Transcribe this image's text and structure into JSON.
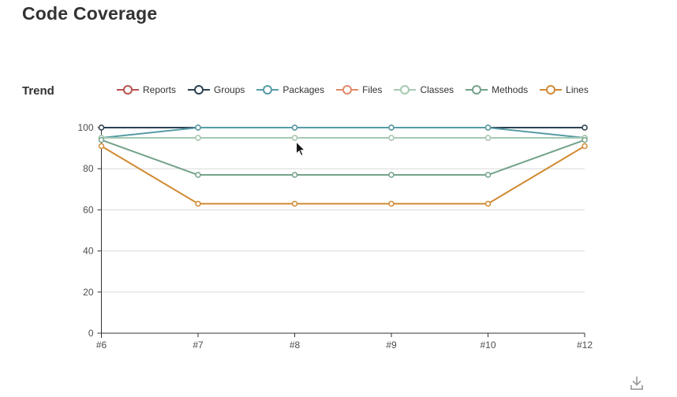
{
  "page": {
    "title": "Code Coverage"
  },
  "trend": {
    "heading": "Trend"
  },
  "chart_data": {
    "type": "line",
    "title": "Trend",
    "x": [
      "#6",
      "#7",
      "#8",
      "#9",
      "#10",
      "#12"
    ],
    "ylim": [
      0,
      100
    ],
    "yticks": [
      0,
      20,
      40,
      60,
      80,
      100
    ],
    "grid": true,
    "legend_position": "top",
    "marker": "empty-circle",
    "series": [
      {
        "name": "Reports",
        "color": "#b5534e",
        "values": [
          100,
          100,
          100,
          100,
          100,
          100
        ]
      },
      {
        "name": "Groups",
        "color": "#2b4252",
        "values": [
          100,
          100,
          100,
          100,
          100,
          100
        ]
      },
      {
        "name": "Packages",
        "color": "#569ca6",
        "values": [
          95,
          100,
          100,
          100,
          100,
          95
        ]
      },
      {
        "name": "Files",
        "color": "#e08a6a",
        "values": [
          95,
          95,
          95,
          95,
          95,
          95
        ]
      },
      {
        "name": "Classes",
        "color": "#a5c9b1",
        "values": [
          95,
          95,
          95,
          95,
          95,
          95
        ]
      },
      {
        "name": "Methods",
        "color": "#72a289",
        "values": [
          94,
          77,
          77,
          77,
          77,
          94
        ]
      },
      {
        "name": "Lines",
        "color": "#d18a33",
        "values": [
          91,
          63,
          63,
          63,
          63,
          91
        ]
      }
    ]
  },
  "colors": {
    "axis": "#333333",
    "grid": "#dadada",
    "tick_text": "#4d4d4d",
    "icon": "#9a9a9a"
  },
  "toolbox": {
    "save_icon": "download-image"
  }
}
